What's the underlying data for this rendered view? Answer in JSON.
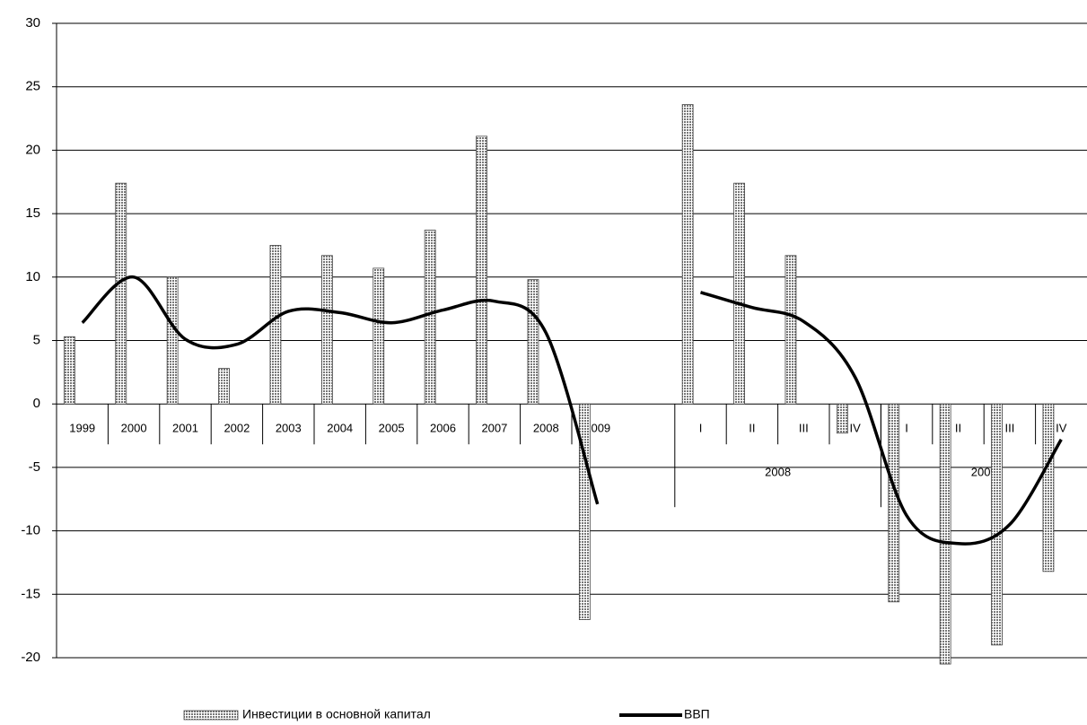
{
  "chart_data": {
    "type": "bar",
    "categories": [
      "1999",
      "2000",
      "2001",
      "2002",
      "2003",
      "2004",
      "2005",
      "2006",
      "2007",
      "2008",
      "2009",
      null,
      "I",
      "II",
      "III",
      "IV",
      "I",
      "II",
      "III",
      "IV"
    ],
    "group_labels": [
      "2008",
      "2009"
    ],
    "series": [
      {
        "name": "Инвестиции в основной капитал",
        "type": "bar",
        "color": "#777777",
        "values": [
          5.3,
          17.4,
          10.0,
          2.8,
          12.5,
          11.7,
          10.7,
          13.7,
          21.1,
          9.8,
          -17.0,
          null,
          23.6,
          17.4,
          11.7,
          -2.3,
          -15.6,
          -20.5,
          -19.0,
          -13.2
        ]
      },
      {
        "name": "ВВП",
        "type": "line",
        "color": "#000000",
        "values": [
          6.4,
          10.0,
          5.1,
          4.7,
          7.3,
          7.2,
          6.4,
          7.4,
          8.1,
          5.6,
          -7.9,
          null,
          8.8,
          7.6,
          6.5,
          2.1,
          -8.8,
          -11.0,
          -9.5,
          -2.8
        ]
      }
    ],
    "ylim": [
      -20,
      30
    ],
    "yticks": [
      30,
      25,
      20,
      15,
      10,
      5,
      0,
      -5,
      -10,
      -15,
      -20
    ],
    "grid": true,
    "legend": "bottom"
  }
}
